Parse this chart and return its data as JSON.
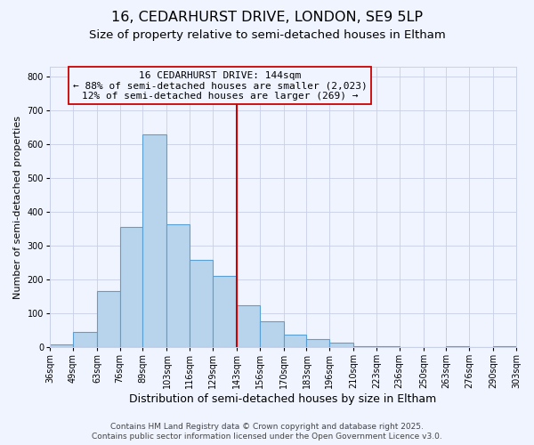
{
  "title": "16, CEDARHURST DRIVE, LONDON, SE9 5LP",
  "subtitle": "Size of property relative to semi-detached houses in Eltham",
  "xlabel": "Distribution of semi-detached houses by size in Eltham",
  "ylabel": "Number of semi-detached properties",
  "bar_edges": [
    36,
    49,
    63,
    76,
    89,
    103,
    116,
    129,
    143,
    156,
    170,
    183,
    196,
    210,
    223,
    236,
    250,
    263,
    276,
    290,
    303
  ],
  "bar_heights": [
    8,
    45,
    165,
    355,
    630,
    365,
    258,
    210,
    125,
    78,
    37,
    23,
    13,
    4,
    4,
    0,
    0,
    3,
    0,
    2
  ],
  "bar_color": "#b8d4ec",
  "bar_edge_color": "#5a9fd4",
  "vline_x": 143,
  "vline_color": "#cc0000",
  "annotation_line1": "16 CEDARHURST DRIVE: 144sqm",
  "annotation_line2": "← 88% of semi-detached houses are smaller (2,023)",
  "annotation_line3": "12% of semi-detached houses are larger (269) →",
  "ylim": [
    0,
    830
  ],
  "yticks": [
    0,
    100,
    200,
    300,
    400,
    500,
    600,
    700,
    800
  ],
  "tick_labels": [
    "36sqm",
    "49sqm",
    "63sqm",
    "76sqm",
    "89sqm",
    "103sqm",
    "116sqm",
    "129sqm",
    "143sqm",
    "156sqm",
    "170sqm",
    "183sqm",
    "196sqm",
    "210sqm",
    "223sqm",
    "236sqm",
    "250sqm",
    "263sqm",
    "276sqm",
    "290sqm",
    "303sqm"
  ],
  "footer1": "Contains HM Land Registry data © Crown copyright and database right 2025.",
  "footer2": "Contains public sector information licensed under the Open Government Licence v3.0.",
  "background_color": "#f0f4ff",
  "grid_color": "#c8d0e8",
  "title_fontsize": 11.5,
  "subtitle_fontsize": 9.5,
  "xlabel_fontsize": 9,
  "ylabel_fontsize": 8,
  "tick_fontsize": 7,
  "annotation_fontsize": 8,
  "footer_fontsize": 6.5
}
